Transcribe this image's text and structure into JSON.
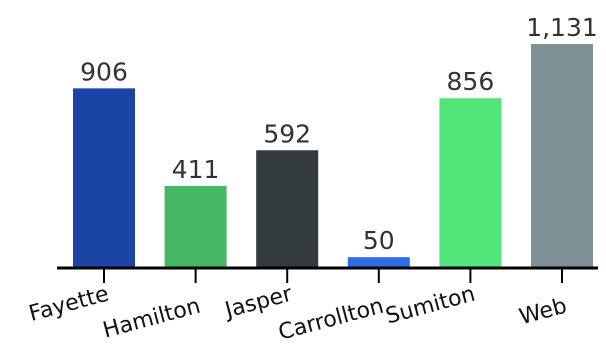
{
  "chart_data": {
    "type": "bar",
    "title": "",
    "xlabel": "",
    "ylabel": "",
    "categories": [
      "Fayette",
      "Hamilton",
      "Jasper",
      "Carrollton",
      "Sumiton",
      "Web"
    ],
    "values": [
      906,
      411,
      592,
      50,
      856,
      1131
    ],
    "value_labels": [
      "906",
      "411",
      "592",
      "50",
      "856",
      "1,131"
    ],
    "colors": [
      "#1a44a6",
      "#45b863",
      "#323a3e",
      "#2f6de8",
      "#53e57a",
      "#7d9197"
    ],
    "ylim": [
      0,
      1131
    ],
    "grid": false,
    "legend": "none"
  }
}
